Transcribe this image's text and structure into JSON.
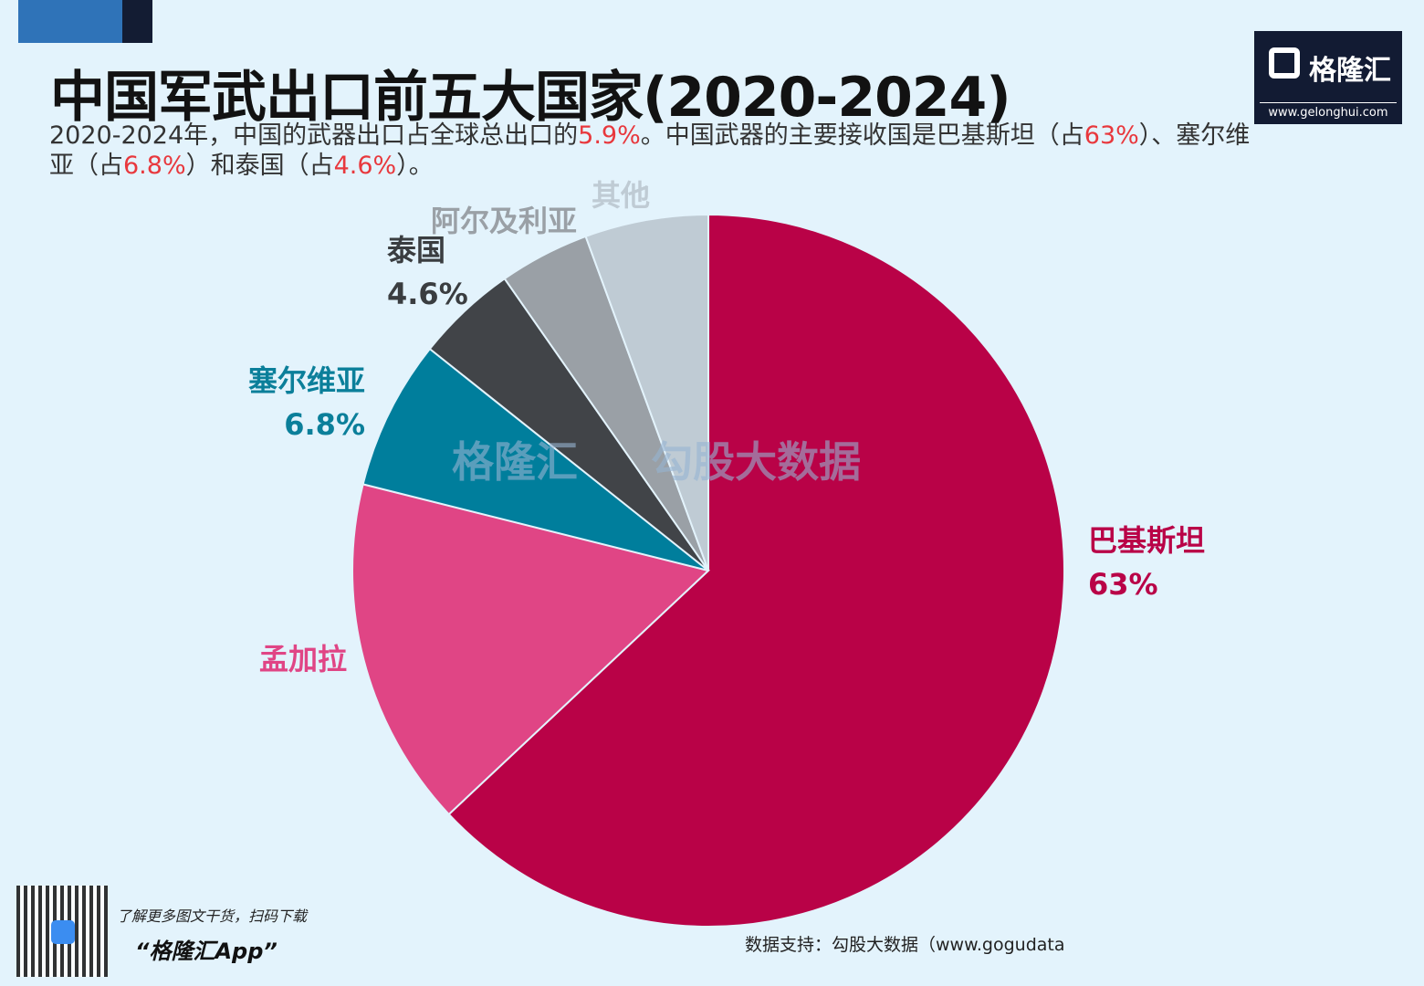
{
  "header": {
    "title": "中国军武出口前五大国家(2020-2024)",
    "subtitle_parts": [
      "2020-2024年，中国的武器出口占全球总出口的",
      "5.9%",
      "。中国武器的主要接收国是巴基斯坦（占",
      "63%",
      "）、塞尔维亚（占",
      "6.8%",
      "）和泰国（占",
      "4.6%",
      "）。"
    ]
  },
  "logo": {
    "name": "格隆汇",
    "url": "www.gelonghui.com"
  },
  "watermark": {
    "left": "格隆汇",
    "right": "勾股大数据",
    "right_url": "www.gogudata.com"
  },
  "footer": {
    "promo_line1": "了解更多图文干货，扫码下载",
    "promo_line2": "“格隆汇App”",
    "source": "数据支持：勾股大数据（www.gogudata"
  },
  "chart_data": {
    "type": "pie",
    "start": "top",
    "direction": "clockwise",
    "slices": [
      {
        "name": "巴基斯坦",
        "value": 63,
        "label": "63%",
        "color": "#b90247"
      },
      {
        "name": "孟加拉",
        "value": 15.9,
        "label": "",
        "color": "#e04585"
      },
      {
        "name": "塞尔维亚",
        "value": 6.8,
        "label": "6.8%",
        "color": "#007e9c"
      },
      {
        "name": "泰国",
        "value": 4.6,
        "label": "4.6%",
        "color": "#414448"
      },
      {
        "name": "阿尔及利亚",
        "value": 4.1,
        "label": "",
        "color": "#9aa0a6"
      },
      {
        "name": "其他",
        "value": 5.6,
        "label": "",
        "color": "#bfcbd4"
      }
    ]
  }
}
